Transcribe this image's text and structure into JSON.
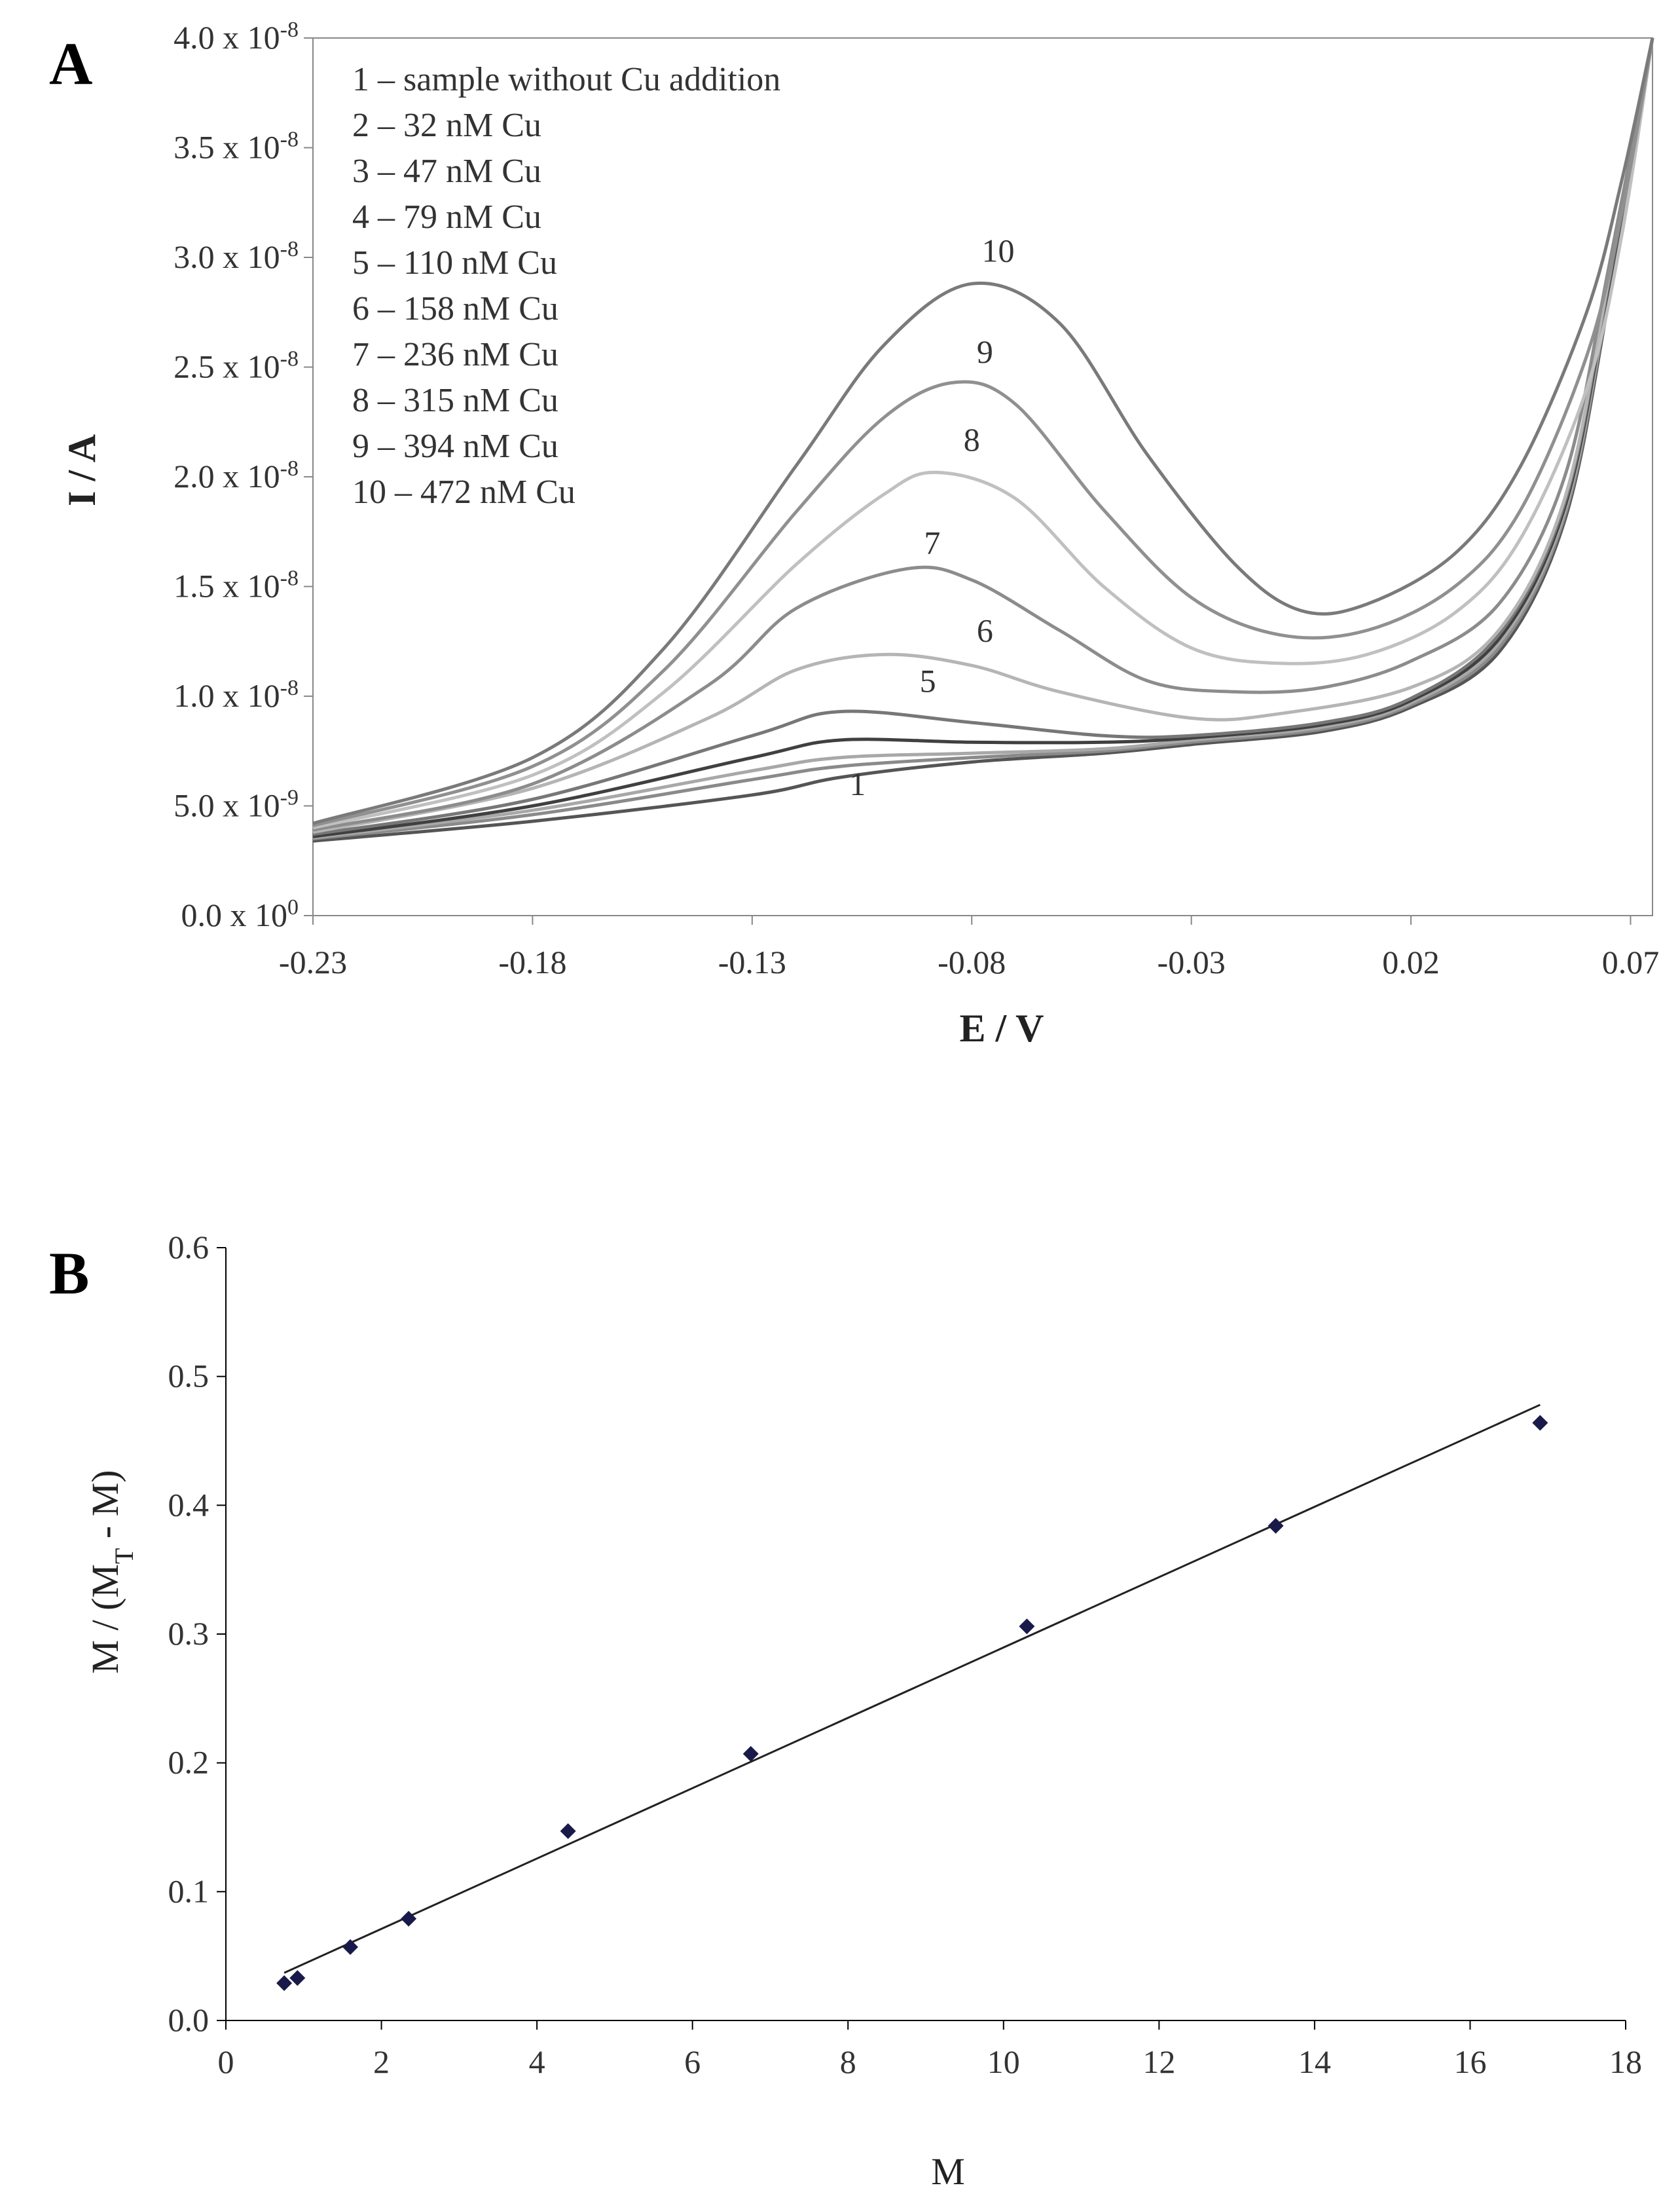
{
  "chart_data": [
    {
      "panel": "A",
      "type": "line",
      "xlabel": "E / V",
      "ylabel": "I / A",
      "xlim": [
        -0.23,
        0.075
      ],
      "ylim": [
        0,
        4e-08
      ],
      "grid": false,
      "x_tick_values": [
        -0.23,
        -0.18,
        -0.13,
        -0.08,
        -0.03,
        0.02,
        0.07
      ],
      "x_tick_labels": [
        "-0.23",
        "-0.18",
        "-0.13",
        "-0.08",
        "-0.03",
        "0.02",
        "0.07"
      ],
      "y_ticks": [
        {
          "value": 0,
          "mantissa": "0.0",
          "exp": "0"
        },
        {
          "value": 5e-09,
          "mantissa": "5.0",
          "exp": "-9"
        },
        {
          "value": 1e-08,
          "mantissa": "1.0",
          "exp": "-8"
        },
        {
          "value": 1.5e-08,
          "mantissa": "1.5",
          "exp": "-8"
        },
        {
          "value": 2e-08,
          "mantissa": "2.0",
          "exp": "-8"
        },
        {
          "value": 2.5e-08,
          "mantissa": "2.5",
          "exp": "-8"
        },
        {
          "value": 3e-08,
          "mantissa": "3.0",
          "exp": "-8"
        },
        {
          "value": 3.5e-08,
          "mantissa": "3.5",
          "exp": "-8"
        },
        {
          "value": 4e-08,
          "mantissa": "4.0",
          "exp": "-8"
        }
      ],
      "legend_entries": [
        "1 – sample without Cu addition",
        "2 – 32 nM Cu",
        "3 – 47 nM Cu",
        "4 – 79 nM Cu",
        "5 – 110 nM Cu",
        "6 – 158 nM Cu",
        "7 – 236 nM Cu",
        "8 – 315 nM Cu",
        "9 – 394 nM Cu",
        "10 – 472 nM Cu"
      ],
      "legend_location": "top-left",
      "series": [
        {
          "name": "1",
          "label": "1",
          "color": "#555555",
          "x": [
            -0.23,
            -0.18,
            -0.13,
            -0.11,
            -0.08,
            -0.05,
            -0.03,
            0.0,
            0.02,
            0.04,
            0.055,
            0.065,
            0.075
          ],
          "y": [
            3.4e-09,
            4.3e-09,
            5.5e-09,
            6.3e-09,
            7e-09,
            7.4e-09,
            7.8e-09,
            8.4e-09,
            9.5e-09,
            1.2e-08,
            1.8e-08,
            2.8e-08,
            4e-08
          ],
          "label_at": [
            -0.106,
            5.5e-09
          ]
        },
        {
          "name": "2",
          "label": "",
          "color": "#8a8a8a",
          "x": [
            -0.23,
            -0.18,
            -0.13,
            -0.11,
            -0.08,
            -0.05,
            -0.03,
            0.0,
            0.02,
            0.04,
            0.055,
            0.065,
            0.075
          ],
          "y": [
            3.5e-09,
            4.6e-09,
            6.2e-09,
            6.8e-09,
            7.2e-09,
            7.5e-09,
            7.9e-09,
            8.5e-09,
            9.6e-09,
            1.22e-08,
            1.82e-08,
            2.82e-08,
            4e-08
          ]
        },
        {
          "name": "3",
          "label": "",
          "color": "#a8a8a8",
          "x": [
            -0.23,
            -0.18,
            -0.13,
            -0.11,
            -0.08,
            -0.05,
            -0.03,
            0.0,
            0.02,
            0.04,
            0.055,
            0.065,
            0.075
          ],
          "y": [
            3.55e-09,
            4.8e-09,
            6.6e-09,
            7.2e-09,
            7.4e-09,
            7.6e-09,
            8e-09,
            8.6e-09,
            9.7e-09,
            1.24e-08,
            1.84e-08,
            2.84e-08,
            4e-08
          ]
        },
        {
          "name": "4",
          "label": "",
          "color": "#404040",
          "x": [
            -0.23,
            -0.18,
            -0.13,
            -0.11,
            -0.08,
            -0.05,
            -0.03,
            0.0,
            0.02,
            0.04,
            0.055,
            0.065,
            0.075
          ],
          "y": [
            3.6e-09,
            5e-09,
            7.2e-09,
            8e-09,
            7.9e-09,
            7.9e-09,
            8.1e-09,
            8.7e-09,
            9.8e-09,
            1.26e-08,
            1.86e-08,
            2.86e-08,
            4e-08
          ]
        },
        {
          "name": "5",
          "label": "5",
          "color": "#777777",
          "x": [
            -0.23,
            -0.18,
            -0.13,
            -0.11,
            -0.08,
            -0.05,
            -0.03,
            0.0,
            0.02,
            0.04,
            0.055,
            0.065,
            0.075
          ],
          "y": [
            3.7e-09,
            5.3e-09,
            8.2e-09,
            9.3e-09,
            8.8e-09,
            8.2e-09,
            8.2e-09,
            8.8e-09,
            9.9e-09,
            1.28e-08,
            1.88e-08,
            2.88e-08,
            4e-08
          ],
          "label_at": [
            -0.09,
            1.02e-08
          ]
        },
        {
          "name": "6",
          "label": "6",
          "color": "#b5b5b5",
          "x": [
            -0.23,
            -0.18,
            -0.14,
            -0.12,
            -0.1,
            -0.08,
            -0.06,
            -0.03,
            -0.01,
            0.02,
            0.04,
            0.055,
            0.065,
            0.075
          ],
          "y": [
            3.8e-09,
            5.8e-09,
            9e-09,
            1.12e-08,
            1.19e-08,
            1.14e-08,
            1.02e-08,
            9e-09,
            9.2e-09,
            1.04e-08,
            1.3e-08,
            1.9e-08,
            2.9e-08,
            4e-08
          ],
          "label_at": [
            -0.077,
            1.25e-08
          ]
        },
        {
          "name": "7",
          "label": "7",
          "color": "#8c8c8c",
          "x": [
            -0.23,
            -0.18,
            -0.14,
            -0.12,
            -0.095,
            -0.08,
            -0.06,
            -0.04,
            -0.02,
            0.0,
            0.02,
            0.04,
            0.055,
            0.065,
            0.075
          ],
          "y": [
            3.9e-09,
            6e-09,
            1.05e-08,
            1.4e-08,
            1.58e-08,
            1.53e-08,
            1.3e-08,
            1.07e-08,
            1.02e-08,
            1.04e-08,
            1.16e-08,
            1.42e-08,
            2e-08,
            2.95e-08,
            4e-08
          ],
          "label_at": [
            -0.089,
            1.65e-08
          ]
        },
        {
          "name": "8",
          "label": "8",
          "color": "#c0c0c0",
          "x": [
            -0.23,
            -0.18,
            -0.15,
            -0.12,
            -0.1,
            -0.088,
            -0.07,
            -0.05,
            -0.03,
            -0.01,
            0.01,
            0.03,
            0.045,
            0.06,
            0.068,
            0.075
          ],
          "y": [
            4e-09,
            6.4e-09,
            1.02e-08,
            1.6e-08,
            1.92e-08,
            2.02e-08,
            1.9e-08,
            1.5e-08,
            1.22e-08,
            1.15e-08,
            1.19e-08,
            1.38e-08,
            1.72e-08,
            2.4e-08,
            3.1e-08,
            4e-08
          ],
          "label_at": [
            -0.08,
            2.12e-08
          ]
        },
        {
          "name": "9",
          "label": "9",
          "color": "#909090",
          "x": [
            -0.23,
            -0.18,
            -0.15,
            -0.12,
            -0.1,
            -0.084,
            -0.07,
            -0.05,
            -0.03,
            -0.01,
            0.01,
            0.03,
            0.045,
            0.06,
            0.068,
            0.075
          ],
          "y": [
            4.1e-09,
            6.8e-09,
            1.12e-08,
            1.84e-08,
            2.27e-08,
            2.43e-08,
            2.33e-08,
            1.85e-08,
            1.45e-08,
            1.28e-08,
            1.3e-08,
            1.5e-08,
            1.85e-08,
            2.55e-08,
            3.2e-08,
            4e-08
          ],
          "label_at": [
            -0.077,
            2.52e-08
          ]
        },
        {
          "name": "10",
          "label": "10",
          "color": "#7a7a7a",
          "x": [
            -0.23,
            -0.18,
            -0.15,
            -0.12,
            -0.1,
            -0.08,
            -0.06,
            -0.04,
            -0.02,
            -0.005,
            0.01,
            0.03,
            0.045,
            0.06,
            0.068,
            0.075
          ],
          "y": [
            4.2e-09,
            7.2e-09,
            1.22e-08,
            2.05e-08,
            2.6e-08,
            2.88e-08,
            2.7e-08,
            2.1e-08,
            1.6e-08,
            1.39e-08,
            1.42e-08,
            1.65e-08,
            2.05e-08,
            2.75e-08,
            3.35e-08,
            4e-08
          ],
          "label_at": [
            -0.074,
            2.98e-08
          ]
        }
      ]
    },
    {
      "panel": "B",
      "type": "scatter",
      "xlabel": "M",
      "ylabel_main": "M / (M",
      "ylabel_sub": "T",
      "ylabel_tail": " - M)",
      "xlim": [
        0,
        18
      ],
      "ylim": [
        0,
        0.6
      ],
      "grid": false,
      "x_tick_values": [
        0,
        2,
        4,
        6,
        8,
        10,
        12,
        14,
        16,
        18
      ],
      "x_tick_labels": [
        "0",
        "2",
        "4",
        "6",
        "8",
        "10",
        "12",
        "14",
        "16",
        "18"
      ],
      "y_tick_values": [
        0,
        0.1,
        0.2,
        0.3,
        0.4,
        0.5,
        0.6
      ],
      "y_tick_labels": [
        "0.0",
        "0.1",
        "0.2",
        "0.3",
        "0.4",
        "0.5",
        "0.6"
      ],
      "points": {
        "x": [
          0.75,
          0.92,
          1.6,
          2.35,
          4.4,
          6.75,
          10.3,
          13.5,
          16.9
        ],
        "y": [
          0.029,
          0.033,
          0.057,
          0.079,
          0.147,
          0.207,
          0.306,
          0.384,
          0.464
        ]
      },
      "marker_color": "#1a1a4a",
      "fit_line": {
        "x": [
          0.75,
          16.9
        ],
        "y": [
          0.037,
          0.478
        ],
        "color": "#222222"
      }
    }
  ]
}
